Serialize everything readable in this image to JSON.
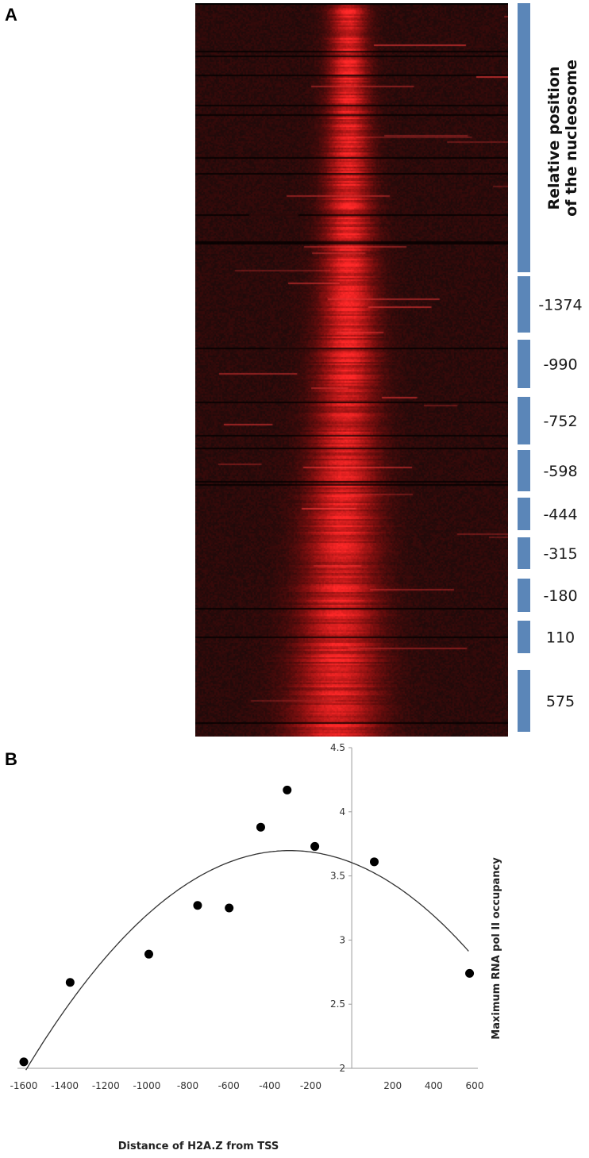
{
  "panels": {
    "a": "A",
    "b": "B"
  },
  "colors": {
    "bar": "#5b86b8",
    "heat_dark": "#1e0a0a",
    "heat_bright": "#ff2a2a",
    "curve": "#333333",
    "point": "#000000"
  },
  "heatmap": {
    "description_bands": [
      {
        "label": "Relative position\nof the nucleosome",
        "header": true
      },
      {
        "label": "-1374"
      },
      {
        "label": "-990"
      },
      {
        "label": "-752"
      },
      {
        "label": "-598"
      },
      {
        "label": "-444"
      },
      {
        "label": "-315"
      },
      {
        "label": "-180"
      },
      {
        "label": "110"
      },
      {
        "label": "575"
      }
    ],
    "header_lines": [
      "Relative position",
      "of the nucleosome"
    ]
  },
  "chart_data": {
    "type": "scatter",
    "xlabel": "Distance of  H2A.Z from TSS",
    "ylabel": "Maximum RNA pol II occupancy",
    "xlim": [
      -1600,
      600
    ],
    "ylim": [
      2,
      4.5
    ],
    "xticks": [
      "-1600",
      "-1400",
      "-1200",
      "-1000",
      "-800",
      "-600",
      "-400",
      "-200",
      "200",
      "400",
      "600"
    ],
    "yticks": [
      "2",
      "2.5",
      "3",
      "3.5",
      "4",
      "4.5"
    ],
    "points": [
      {
        "x": -1600,
        "y": 2.05
      },
      {
        "x": -1374,
        "y": 2.67
      },
      {
        "x": -990,
        "y": 2.89
      },
      {
        "x": -752,
        "y": 3.27
      },
      {
        "x": -598,
        "y": 3.25
      },
      {
        "x": -444,
        "y": 3.88
      },
      {
        "x": -315,
        "y": 4.17
      },
      {
        "x": -180,
        "y": 3.73
      },
      {
        "x": 110,
        "y": 3.61
      },
      {
        "x": 575,
        "y": 2.74
      }
    ],
    "trend": {
      "type": "polynomial",
      "x_from": -1590,
      "x_to": 575,
      "peak_x": -300,
      "peak_y": 3.7
    }
  }
}
